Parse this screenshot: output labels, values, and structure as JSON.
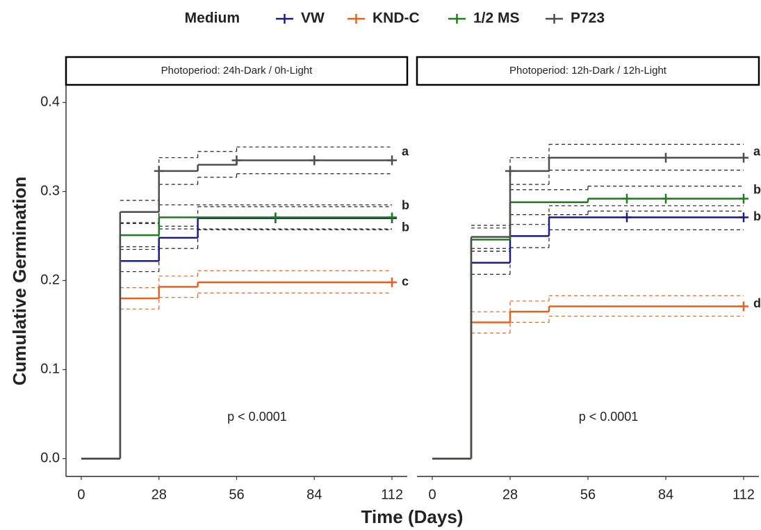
{
  "legend_title": "Medium",
  "xlabel": "Time (Days)",
  "ylabel": "Cumulative Germination",
  "chart_data": [
    {
      "type": "step",
      "title": "Photoperiod: 24h-Dark / 0h-Light",
      "annotation": "p < 0.0001",
      "xlim": [
        -5.5,
        117.5
      ],
      "ylim": [
        -0.02,
        0.419
      ],
      "xticks": [
        0,
        28,
        56,
        84,
        112
      ],
      "yticks": [
        {
          "value": 0,
          "label": "0.0"
        },
        {
          "value": 0.1,
          "label": "0.1"
        },
        {
          "value": 0.2,
          "label": "0.2"
        },
        {
          "value": 0.3,
          "label": "0.3"
        },
        {
          "value": 0.4,
          "label": "0.4"
        }
      ],
      "series": [
        {
          "name": "VW",
          "color": "#1c1c85",
          "band_color": "#222222",
          "label": "b",
          "x": [
            0,
            14,
            28,
            42
          ],
          "values": [
            0,
            0.222,
            0.248,
            0.27
          ],
          "lower": [
            null,
            0.21,
            0.236,
            0.257
          ],
          "upper": [
            null,
            0.235,
            0.261,
            0.283
          ],
          "censor_x": [
            70,
            112
          ]
        },
        {
          "name": "KND-C",
          "color": "#e8601c",
          "band_color": "#e8601c",
          "label": "c",
          "x": [
            0,
            14,
            28,
            42
          ],
          "values": [
            0,
            0.18,
            0.193,
            0.198
          ],
          "lower": [
            null,
            0.168,
            0.181,
            0.186
          ],
          "upper": [
            null,
            0.192,
            0.205,
            0.211
          ],
          "censor_x": [
            112
          ]
        },
        {
          "name": "1/2 MS",
          "color": "#1e7b1e",
          "band_color": "#222222",
          "label": "b",
          "x": [
            0,
            14,
            28
          ],
          "values": [
            0,
            0.251,
            0.271
          ],
          "lower": [
            null,
            0.238,
            0.258
          ],
          "upper": [
            null,
            0.264,
            0.285
          ],
          "censor_x": [
            70,
            112
          ]
        },
        {
          "name": "P723",
          "color": "#4d4d4d",
          "band_color": "#222222",
          "label": "a",
          "x": [
            0,
            14,
            28,
            42,
            56
          ],
          "values": [
            0,
            0.277,
            0.323,
            0.33,
            0.335
          ],
          "lower": [
            null,
            0.265,
            0.308,
            0.316,
            0.32
          ],
          "upper": [
            null,
            0.29,
            0.338,
            0.345,
            0.35
          ],
          "censor_x": [
            28,
            56,
            84,
            112
          ]
        }
      ]
    },
    {
      "type": "step",
      "title": "Photoperiod: 12h-Dark / 12h-Light",
      "annotation": "p < 0.0001",
      "xlim": [
        -5.5,
        117.5
      ],
      "ylim": [
        -0.02,
        0.419
      ],
      "xticks": [
        0,
        28,
        56,
        84,
        112
      ],
      "series": [
        {
          "name": "VW",
          "color": "#1c1c85",
          "band_color": "#222222",
          "label": "b",
          "x": [
            0,
            14,
            28,
            42
          ],
          "values": [
            0,
            0.22,
            0.25,
            0.271
          ],
          "lower": [
            null,
            0.207,
            0.237,
            0.257
          ],
          "upper": [
            null,
            0.233,
            0.263,
            0.284
          ],
          "censor_x": [
            70,
            112
          ]
        },
        {
          "name": "KND-C",
          "color": "#e8601c",
          "band_color": "#e8601c",
          "label": "d",
          "x": [
            0,
            14,
            28,
            42
          ],
          "values": [
            0,
            0.153,
            0.165,
            0.171
          ],
          "lower": [
            null,
            0.141,
            0.153,
            0.16
          ],
          "upper": [
            null,
            0.165,
            0.177,
            0.183
          ],
          "censor_x": [
            112
          ]
        },
        {
          "name": "1/2 MS",
          "color": "#1e7b1e",
          "band_color": "#222222",
          "label": "b",
          "x": [
            0,
            14,
            28,
            56
          ],
          "values": [
            0,
            0.246,
            0.288,
            0.292
          ],
          "lower": [
            null,
            0.233,
            0.274,
            0.278
          ],
          "upper": [
            null,
            0.259,
            0.302,
            0.306
          ],
          "censor_x": [
            70,
            84,
            112
          ]
        },
        {
          "name": "P723",
          "color": "#4d4d4d",
          "band_color": "#222222",
          "label": "a",
          "x": [
            0,
            14,
            28,
            42
          ],
          "values": [
            0,
            0.249,
            0.323,
            0.338
          ],
          "lower": [
            null,
            0.236,
            0.308,
            0.324
          ],
          "upper": [
            null,
            0.262,
            0.338,
            0.353
          ],
          "censor_x": [
            28,
            84,
            112
          ]
        }
      ]
    }
  ]
}
